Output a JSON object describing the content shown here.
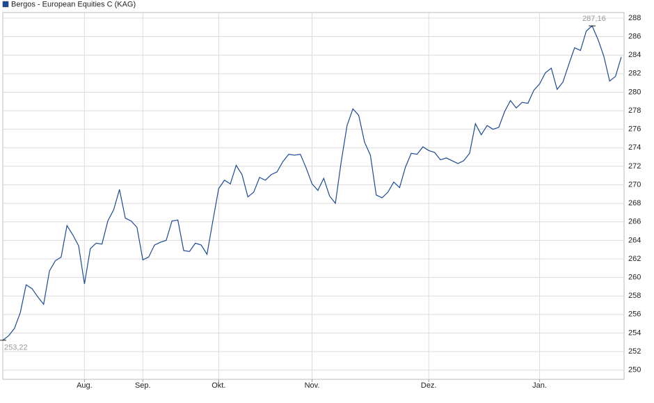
{
  "chart_data": {
    "type": "line",
    "x": [
      0,
      1,
      2,
      3,
      4,
      5,
      6,
      7,
      8,
      9,
      10,
      11,
      12,
      13,
      14,
      15,
      16,
      17,
      18,
      19,
      20,
      21,
      22,
      23,
      24,
      25,
      26,
      27,
      28,
      29,
      30,
      31,
      32,
      33,
      34,
      35,
      36,
      37,
      38,
      39,
      40,
      41,
      42,
      43,
      44,
      45,
      46,
      47,
      48,
      49,
      50,
      51,
      52,
      53,
      54,
      55,
      56,
      57,
      58,
      59,
      60,
      61,
      62,
      63,
      64,
      65,
      66,
      67,
      68,
      69,
      70,
      71,
      72,
      73,
      74,
      75,
      76,
      77,
      78,
      79,
      80,
      81,
      82,
      83,
      84,
      85,
      86,
      87,
      88,
      89,
      90,
      91,
      92,
      93,
      94,
      95,
      96,
      97,
      98,
      99,
      100,
      101,
      102,
      103,
      104,
      105,
      106
    ],
    "series": [
      {
        "name": "Bergos - European Equities C (KAG)",
        "color": "#1a4a96",
        "values": [
          253.22,
          253.7,
          254.5,
          256.2,
          259.2,
          258.8,
          257.9,
          257.1,
          260.7,
          261.8,
          262.2,
          265.6,
          264.6,
          263.4,
          259.3,
          263.1,
          263.7,
          263.6,
          266.1,
          267.3,
          269.5,
          266.4,
          266.1,
          265.4,
          261.9,
          262.2,
          263.5,
          263.8,
          264.0,
          266.1,
          266.2,
          262.9,
          262.8,
          263.7,
          263.5,
          262.5,
          266.1,
          269.6,
          270.5,
          270.1,
          272.1,
          271.1,
          268.7,
          269.2,
          270.8,
          270.5,
          271.1,
          271.4,
          272.5,
          273.3,
          273.2,
          273.3,
          271.8,
          270.1,
          269.4,
          270.7,
          268.8,
          268.0,
          272.5,
          276.4,
          278.2,
          277.5,
          274.6,
          273.2,
          268.9,
          268.6,
          269.2,
          270.3,
          269.7,
          271.9,
          273.4,
          273.3,
          274.1,
          273.7,
          273.5,
          272.7,
          272.9,
          272.6,
          272.3,
          272.6,
          273.4,
          276.6,
          275.4,
          276.4,
          276.0,
          276.2,
          277.9,
          279.1,
          278.3,
          278.9,
          278.8,
          280.2,
          280.9,
          282.1,
          282.6,
          280.3,
          281.1,
          283.0,
          284.8,
          284.5,
          286.6,
          287.16,
          285.7,
          283.9,
          281.2,
          281.7,
          283.8
        ]
      }
    ],
    "xlim": [
      0,
      106
    ],
    "xticks": [
      {
        "value": 14,
        "label": "Aug."
      },
      {
        "value": 24,
        "label": "Sep."
      },
      {
        "value": 37,
        "label": "Okt."
      },
      {
        "value": 53,
        "label": "Nov."
      },
      {
        "value": 73,
        "label": "Dez."
      },
      {
        "value": 92,
        "label": "Jan."
      }
    ],
    "ylim": [
      249,
      288.6
    ],
    "yticks": [
      250,
      252,
      254,
      256,
      258,
      260,
      262,
      264,
      266,
      268,
      270,
      272,
      274,
      276,
      278,
      280,
      282,
      284,
      286,
      288
    ],
    "grid": true,
    "annotations": [
      {
        "text": "287,16",
        "x": 101,
        "y": 287.16
      },
      {
        "text": "253,22",
        "x": 0,
        "y": 253.22
      }
    ]
  }
}
